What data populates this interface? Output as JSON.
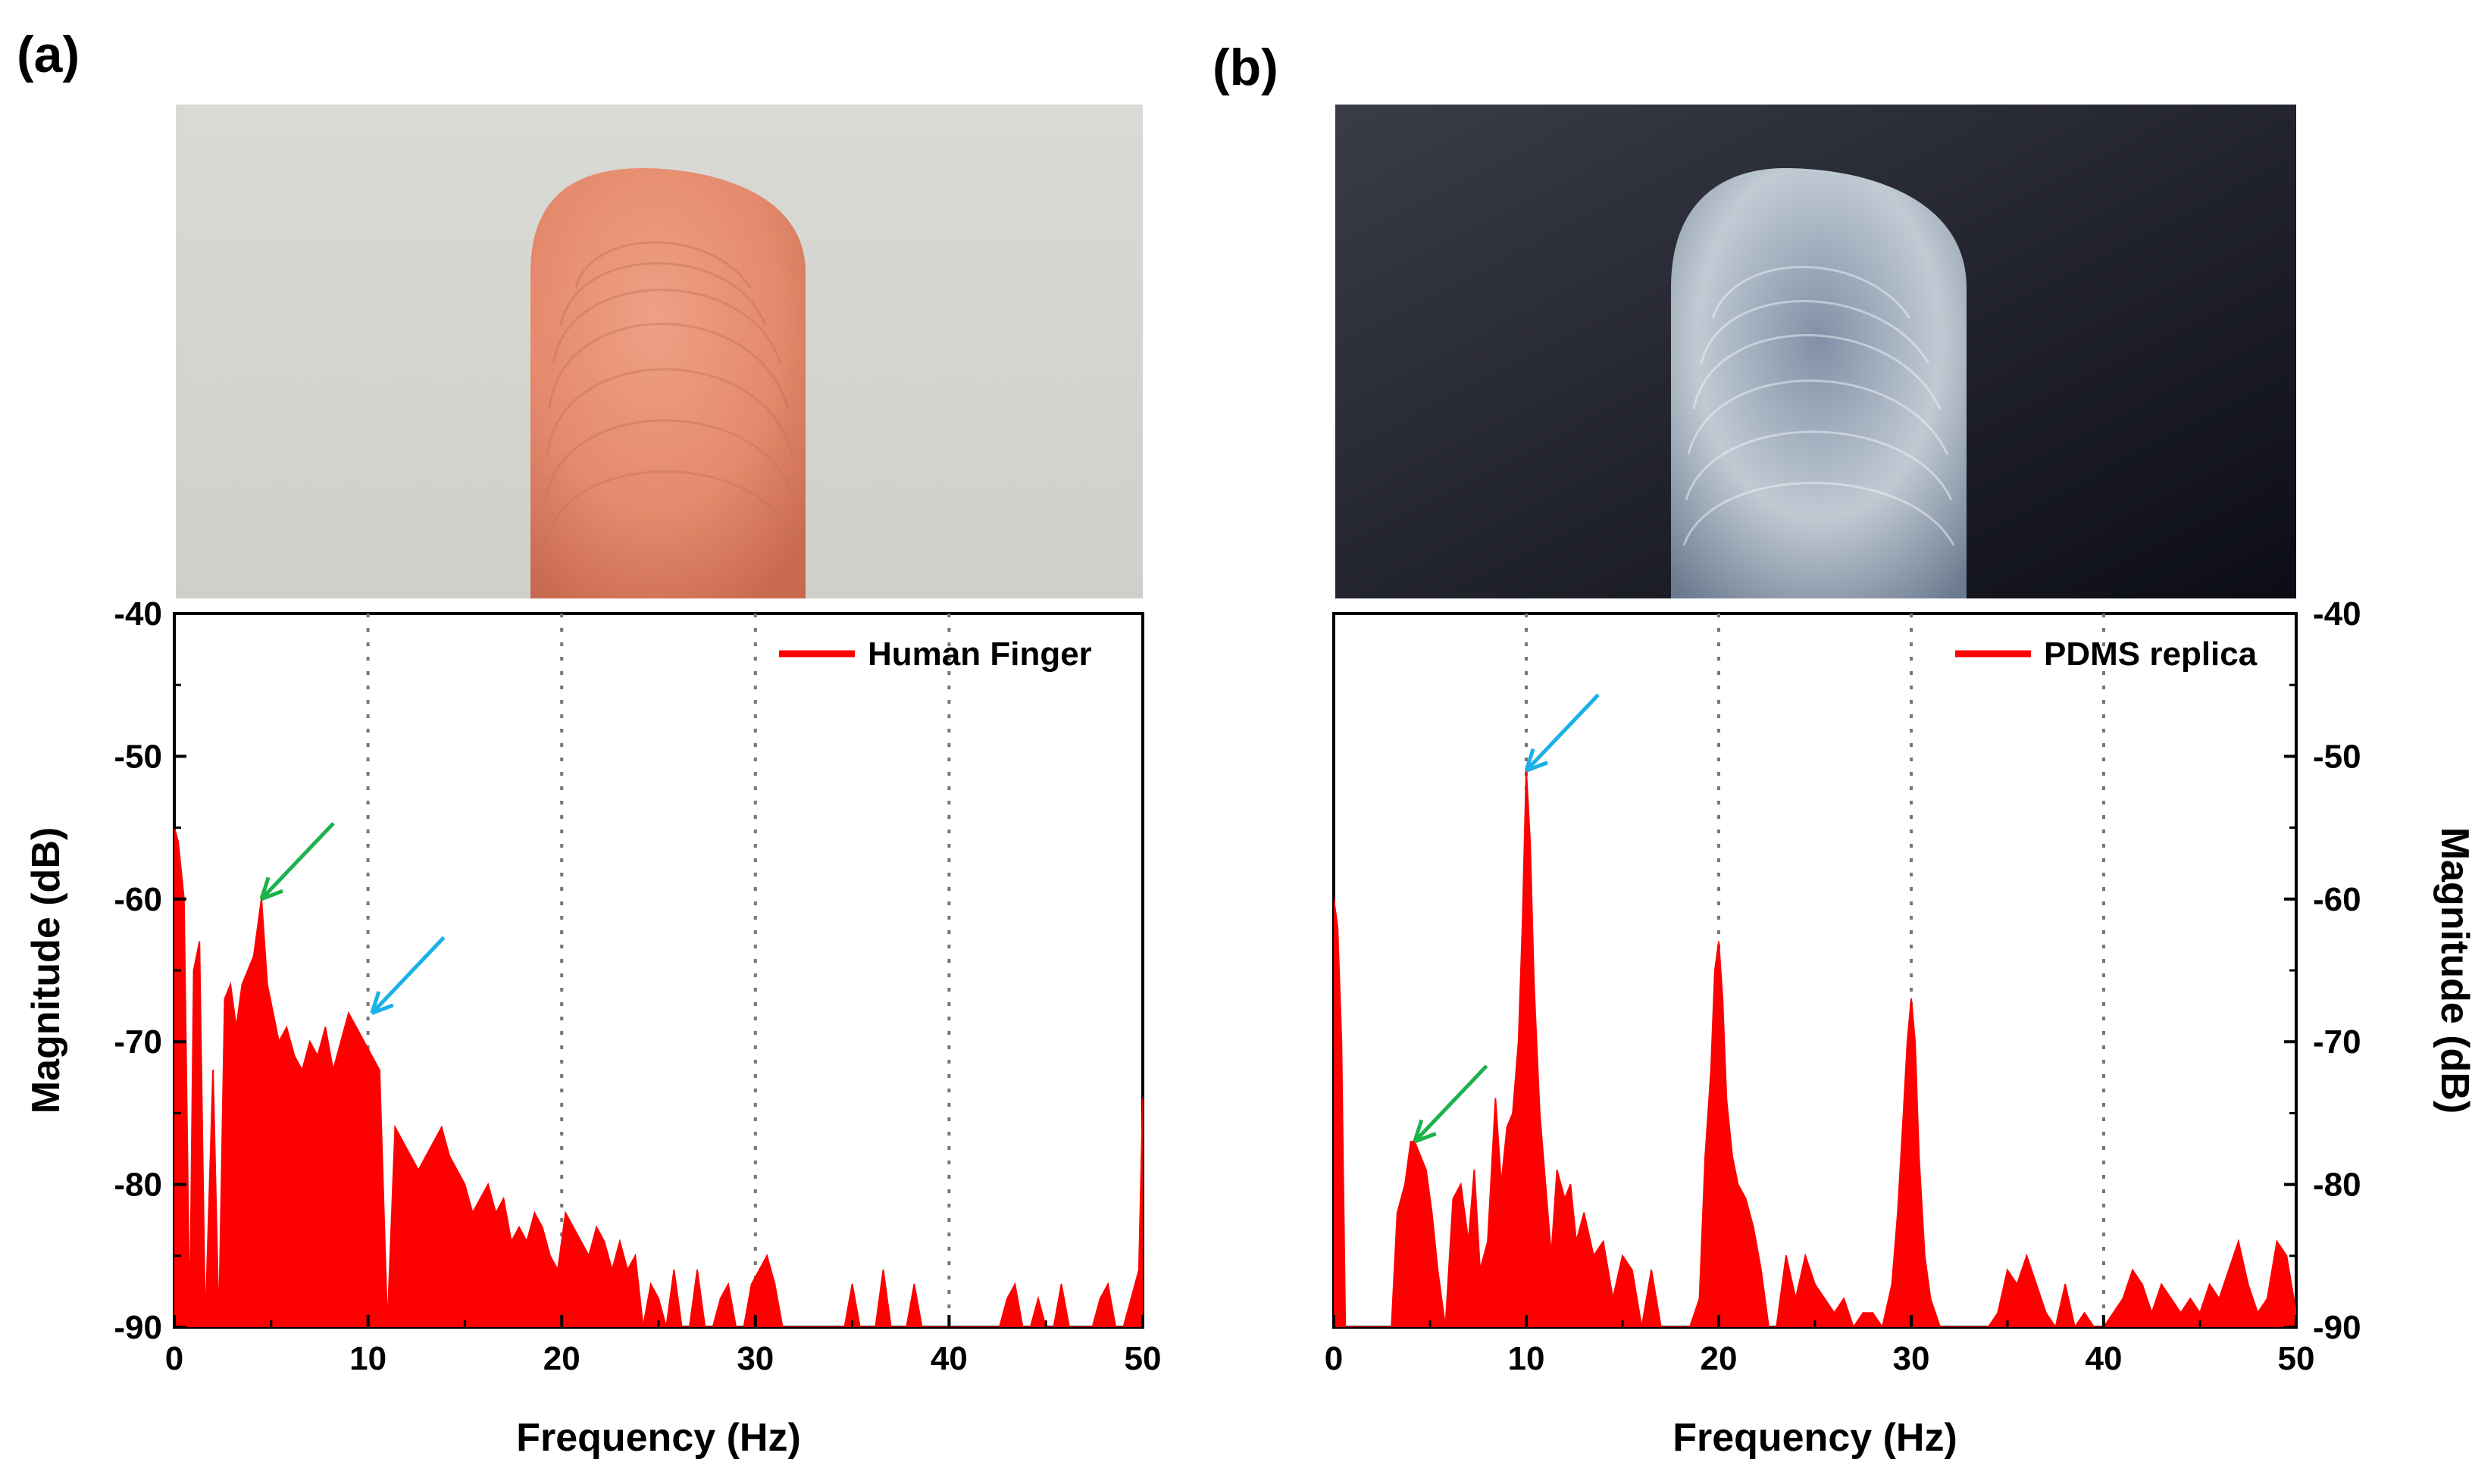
{
  "panels": [
    {
      "label": "(a)",
      "photo": "Human fingertip",
      "colors": {
        "bg_top": "#d9dad6",
        "bg_bottom": "#cfd0cc",
        "finger": "#e58a6c",
        "finger_dark": "#c86a4f"
      }
    },
    {
      "label": "(b)",
      "photo": "PDMS replica fingertip",
      "colors": {
        "bg_top": "#3a3c48",
        "bg_bottom": "#0c0d14",
        "finger": "#c9d3dc",
        "finger_dark": "#6f7f95"
      }
    }
  ],
  "series_color": "#ff0000",
  "arrow_colors": {
    "green": "#1db24b",
    "blue": "#1ab0e8"
  },
  "chart_data": [
    {
      "type": "area",
      "title": "",
      "xlabel": "Frequency (Hz)",
      "ylabel": "Magnitude (dB)",
      "xlim": [
        0,
        50
      ],
      "ylim": [
        -90,
        -40
      ],
      "xticks": [
        0,
        10,
        20,
        30,
        40,
        50
      ],
      "yticks": [
        -40,
        -50,
        -60,
        -70,
        -80,
        -90
      ],
      "gridlines_x": [
        10,
        20,
        30,
        40
      ],
      "legend": "Human Finger",
      "legend_position": "top-right",
      "y_axis_side": "left",
      "arrows": [
        {
          "color": "green",
          "target_x": 4.5,
          "target_y": -60
        },
        {
          "color": "blue",
          "target_x": 10.2,
          "target_y": -68
        }
      ],
      "x": [
        0,
        0.2,
        0.5,
        0.8,
        1.0,
        1.3,
        1.6,
        2.0,
        2.3,
        2.6,
        2.9,
        3.2,
        3.5,
        3.8,
        4.1,
        4.5,
        4.8,
        5.1,
        5.4,
        5.8,
        6.2,
        6.6,
        7.0,
        7.4,
        7.8,
        8.2,
        8.6,
        9.0,
        9.4,
        9.8,
        10.2,
        10.6,
        11.0,
        11.4,
        11.8,
        12.2,
        12.6,
        13.0,
        13.4,
        13.8,
        14.2,
        14.6,
        15.0,
        15.4,
        15.8,
        16.2,
        16.6,
        17.0,
        17.4,
        17.8,
        18.2,
        18.6,
        19.0,
        19.4,
        19.8,
        20.2,
        20.6,
        21.0,
        21.4,
        21.8,
        22.2,
        22.6,
        23.0,
        23.4,
        23.8,
        24.2,
        24.6,
        25.0,
        25.4,
        25.8,
        26.2,
        26.6,
        27.0,
        27.4,
        27.8,
        28.2,
        28.6,
        29.0,
        29.4,
        29.8,
        30.2,
        30.6,
        31.0,
        31.4,
        31.8,
        32.2,
        32.6,
        33.0,
        33.4,
        33.8,
        34.2,
        34.6,
        35.0,
        35.4,
        35.8,
        36.2,
        36.6,
        37.0,
        37.4,
        37.8,
        38.2,
        38.6,
        39.0,
        39.4,
        39.8,
        40.2,
        40.6,
        41.0,
        41.4,
        41.8,
        42.2,
        42.6,
        43.0,
        43.4,
        43.8,
        44.2,
        44.6,
        45.0,
        45.4,
        45.8,
        46.2,
        46.6,
        47.0,
        47.4,
        47.8,
        48.2,
        48.6,
        49.0,
        49.4,
        49.8,
        50.0
      ],
      "y": [
        -55,
        -56,
        -60,
        -90,
        -65,
        -63,
        -90,
        -72,
        -90,
        -67,
        -66,
        -69,
        -66,
        -65,
        -64,
        -60,
        -66,
        -68,
        -70,
        -69,
        -71,
        -72,
        -70,
        -71,
        -69,
        -72,
        -70,
        -68,
        -69,
        -70,
        -71,
        -72,
        -90,
        -76,
        -77,
        -78,
        -79,
        -78,
        -77,
        -76,
        -78,
        -79,
        -80,
        -82,
        -81,
        -80,
        -82,
        -81,
        -84,
        -83,
        -84,
        -82,
        -83,
        -85,
        -86,
        -82,
        -83,
        -84,
        -85,
        -83,
        -84,
        -86,
        -84,
        -86,
        -85,
        -90,
        -87,
        -88,
        -90,
        -86,
        -90,
        -90,
        -86,
        -90,
        -90,
        -88,
        -87,
        -90,
        -90,
        -87,
        -86,
        -85,
        -87,
        -90,
        -90,
        -90,
        -90,
        -90,
        -90,
        -90,
        -90,
        -90,
        -87,
        -90,
        -90,
        -90,
        -86,
        -90,
        -90,
        -90,
        -87,
        -90,
        -90,
        -90,
        -90,
        -90,
        -90,
        -90,
        -90,
        -90,
        -90,
        -90,
        -88,
        -87,
        -90,
        -90,
        -88,
        -90,
        -90,
        -87,
        -90,
        -90,
        -90,
        -90,
        -88,
        -87,
        -90,
        -90,
        -88,
        -86,
        -74
      ]
    },
    {
      "type": "area",
      "title": "",
      "xlabel": "Frequency (Hz)",
      "ylabel": "Magnitude (dB)",
      "xlim": [
        0,
        50
      ],
      "ylim": [
        -90,
        -40
      ],
      "xticks": [
        0,
        10,
        20,
        30,
        40,
        50
      ],
      "yticks": [
        -40,
        -50,
        -60,
        -70,
        -80,
        -90
      ],
      "gridlines_x": [
        10,
        20,
        30,
        40
      ],
      "legend": "PDMS replica",
      "legend_position": "top-right",
      "y_axis_side": "right",
      "arrows": [
        {
          "color": "green",
          "target_x": 4.2,
          "target_y": -77
        },
        {
          "color": "blue",
          "target_x": 10.0,
          "target_y": -51
        }
      ],
      "x": [
        0,
        0.2,
        0.4,
        0.6,
        0.8,
        1.0,
        1.5,
        2.0,
        2.5,
        3.0,
        3.3,
        3.7,
        4.0,
        4.2,
        4.5,
        4.8,
        5.1,
        5.4,
        5.8,
        6.2,
        6.6,
        7.0,
        7.3,
        7.6,
        8.0,
        8.4,
        8.7,
        9.0,
        9.3,
        9.6,
        9.8,
        10.0,
        10.2,
        10.4,
        10.7,
        11.0,
        11.3,
        11.6,
        12.0,
        12.3,
        12.6,
        13.0,
        13.5,
        14.0,
        14.5,
        15.0,
        15.5,
        16.0,
        16.5,
        17.0,
        17.5,
        18.0,
        18.5,
        19.0,
        19.3,
        19.6,
        19.8,
        20.0,
        20.2,
        20.4,
        20.7,
        21.0,
        21.4,
        21.8,
        22.2,
        22.6,
        23.0,
        23.5,
        24.0,
        24.5,
        25.0,
        25.5,
        26.0,
        26.5,
        27.0,
        27.5,
        28.0,
        28.5,
        29.0,
        29.3,
        29.6,
        29.8,
        30.0,
        30.2,
        30.4,
        30.7,
        31.0,
        31.5,
        32.0,
        32.5,
        33.0,
        33.5,
        34.0,
        34.5,
        35.0,
        35.5,
        36.0,
        36.5,
        37.0,
        37.5,
        38.0,
        38.5,
        39.0,
        39.5,
        40.0,
        40.5,
        41.0,
        41.5,
        42.0,
        42.5,
        43.0,
        43.5,
        44.0,
        44.5,
        45.0,
        45.5,
        46.0,
        46.5,
        47.0,
        47.5,
        48.0,
        48.5,
        49.0,
        49.5,
        50.0
      ],
      "y": [
        -60,
        -62,
        -70,
        -90,
        -90,
        -90,
        -90,
        -90,
        -90,
        -90,
        -82,
        -80,
        -77,
        -77,
        -78,
        -79,
        -82,
        -86,
        -90,
        -81,
        -80,
        -84,
        -79,
        -86,
        -84,
        -74,
        -80,
        -76,
        -75,
        -70,
        -62,
        -51,
        -56,
        -66,
        -75,
        -80,
        -85,
        -79,
        -81,
        -80,
        -84,
        -82,
        -85,
        -84,
        -88,
        -85,
        -86,
        -90,
        -86,
        -90,
        -90,
        -90,
        -90,
        -88,
        -78,
        -72,
        -65,
        -63,
        -67,
        -74,
        -78,
        -80,
        -81,
        -83,
        -86,
        -90,
        -90,
        -85,
        -88,
        -85,
        -87,
        -88,
        -89,
        -88,
        -90,
        -89,
        -89,
        -90,
        -87,
        -82,
        -75,
        -70,
        -67,
        -70,
        -78,
        -85,
        -88,
        -90,
        -90,
        -90,
        -90,
        -90,
        -90,
        -89,
        -86,
        -87,
        -85,
        -87,
        -89,
        -90,
        -87,
        -90,
        -89,
        -90,
        -90,
        -89,
        -88,
        -86,
        -87,
        -89,
        -87,
        -88,
        -89,
        -88,
        -89,
        -87,
        -88,
        -86,
        -84,
        -87,
        -89,
        -88,
        -84,
        -85,
        -89
      ]
    }
  ]
}
